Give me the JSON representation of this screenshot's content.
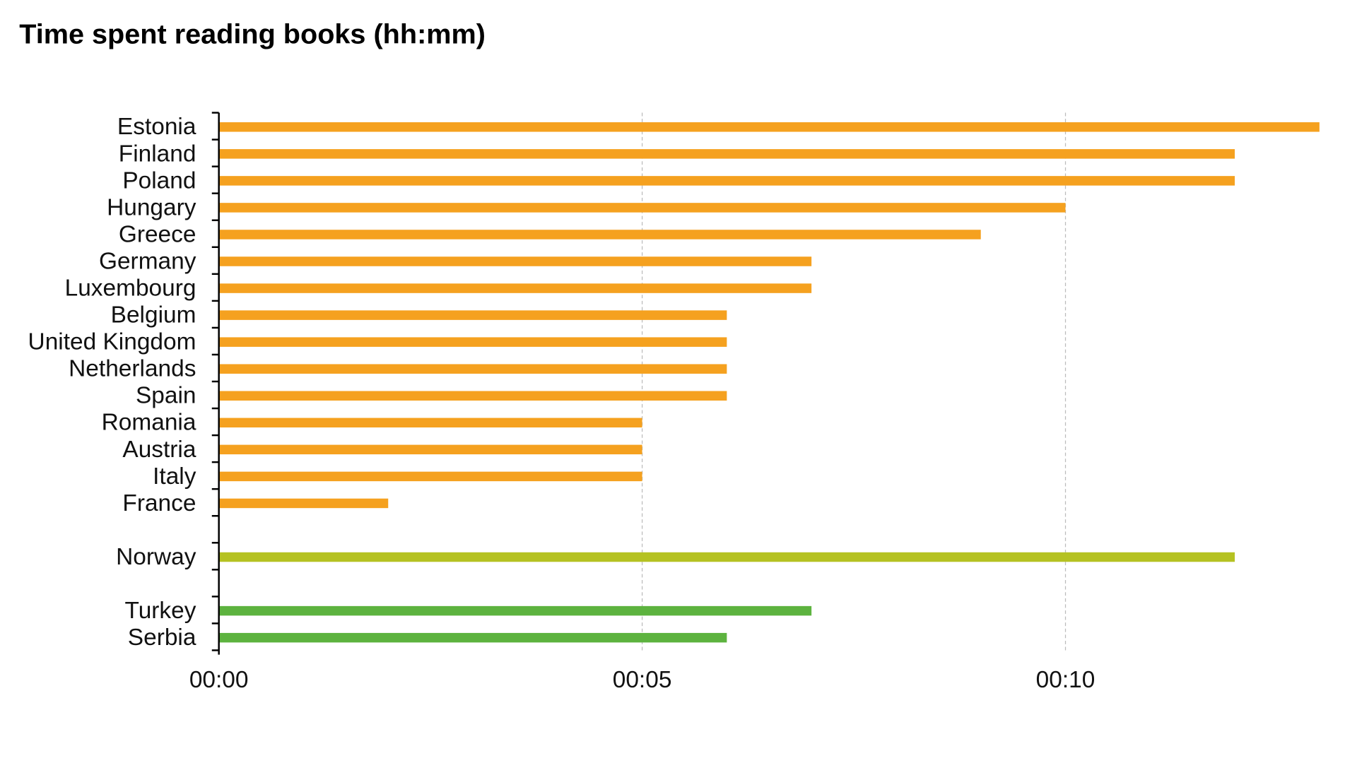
{
  "chart_data": {
    "type": "bar",
    "orientation": "horizontal",
    "title": "Time spent reading books (hh:mm)",
    "xlabel": "",
    "ylabel": "",
    "xlim": [
      0,
      13
    ],
    "x_unit": "minutes",
    "x_ticks": [
      0,
      5,
      10
    ],
    "x_tick_labels": [
      "00:00",
      "00:05",
      "00:10"
    ],
    "grid": "vertical dashed",
    "legend": "none",
    "groups": [
      {
        "color": "#F5A11F",
        "categories": [
          "Estonia",
          "Finland",
          "Poland",
          "Hungary",
          "Greece",
          "Germany",
          "Luxembourg",
          "Belgium",
          "United Kingdom",
          "Netherlands",
          "Spain",
          "Romania",
          "Austria",
          "Italy",
          "France"
        ],
        "values": [
          13,
          12,
          12,
          10,
          9,
          7,
          7,
          6,
          6,
          6,
          6,
          5,
          5,
          5,
          2
        ]
      },
      {
        "color": "#B5C222",
        "categories": [
          "Norway"
        ],
        "values": [
          12
        ]
      },
      {
        "color": "#5DB33F",
        "categories": [
          "Turkey",
          "Serbia"
        ],
        "values": [
          7,
          6
        ]
      }
    ]
  }
}
